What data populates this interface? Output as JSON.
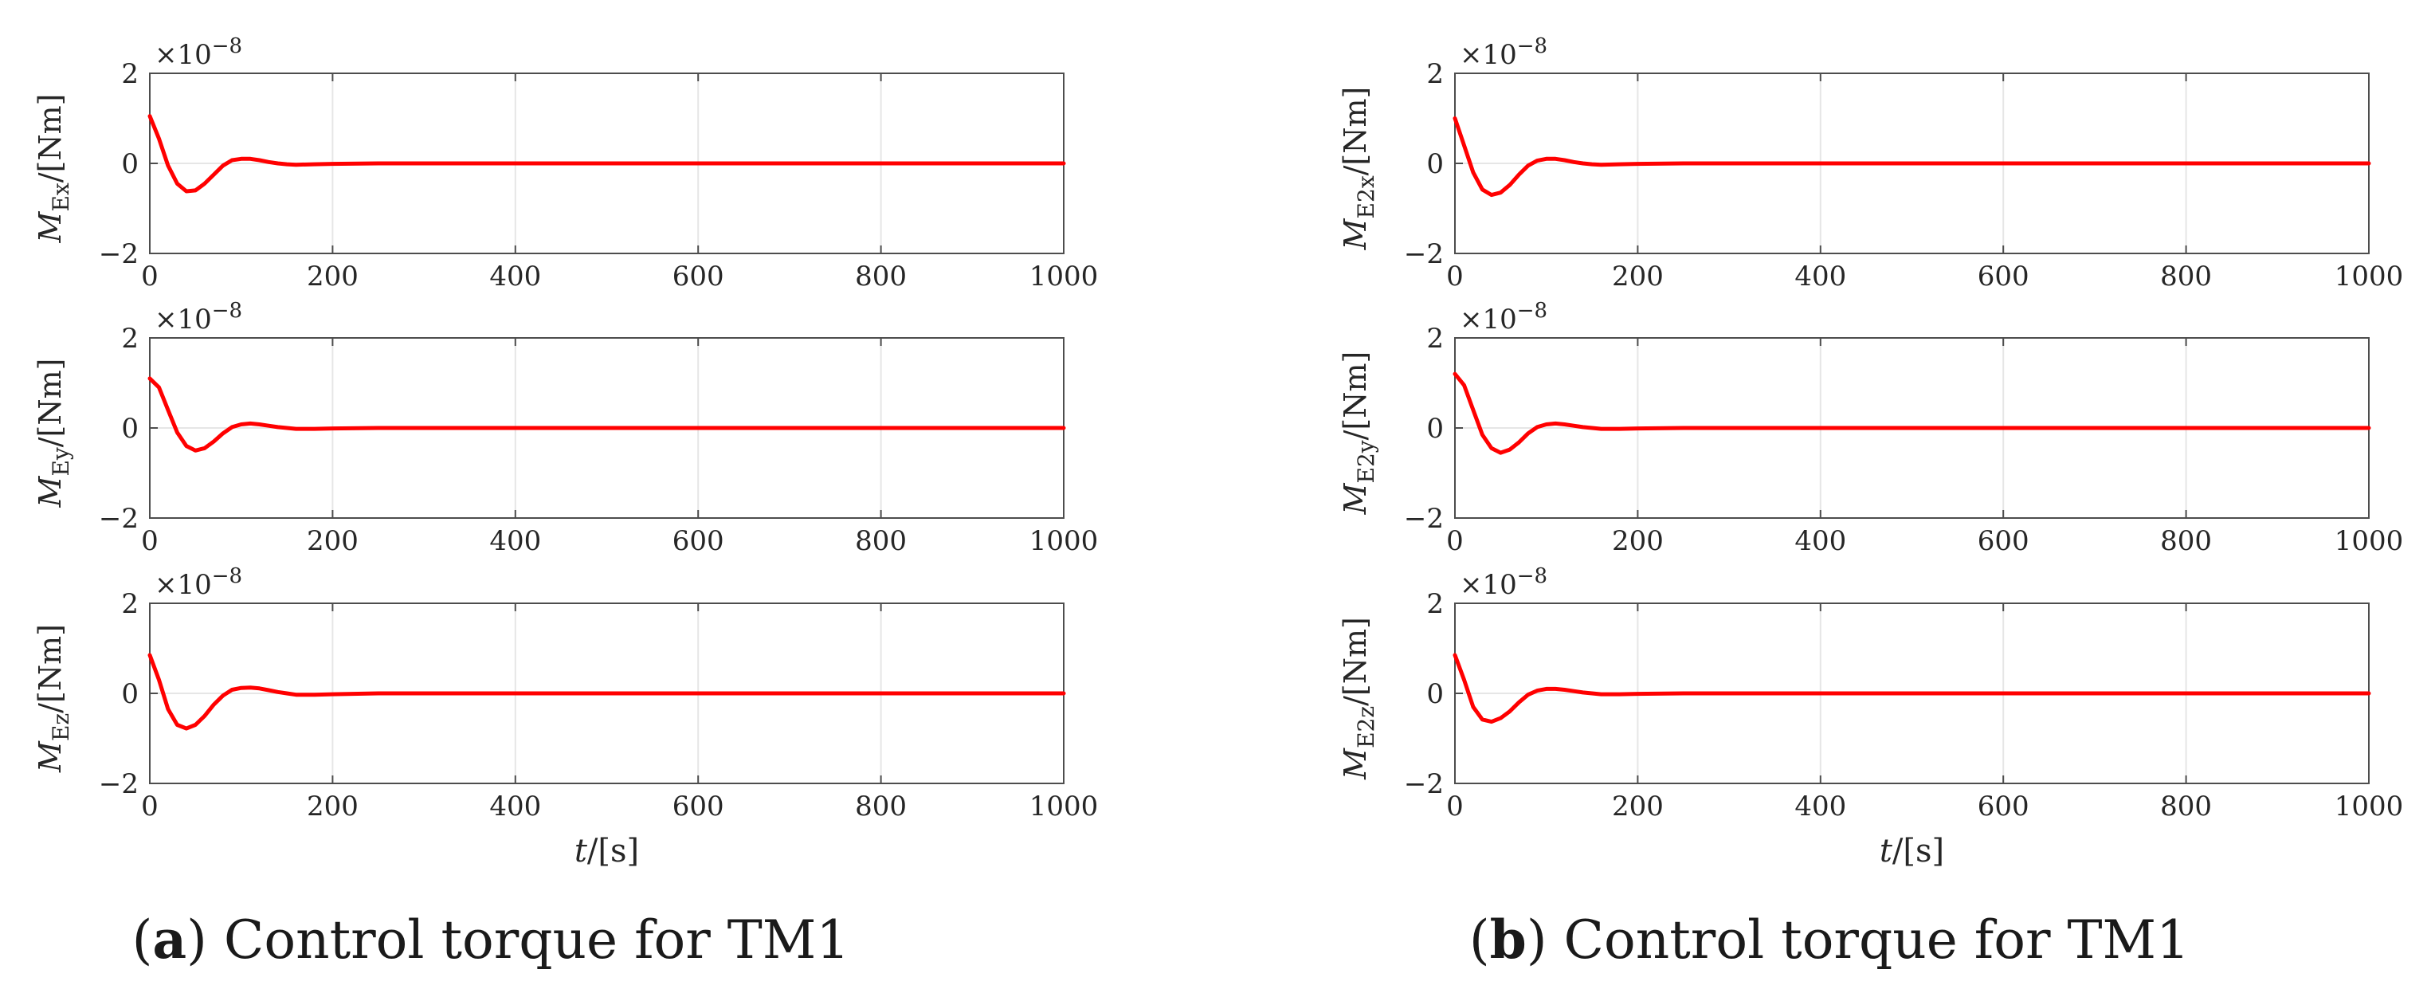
{
  "colors": {
    "series": "#ff0000",
    "grid": "#e6e6e6",
    "axis": "#4d4d4d",
    "text": "#262626"
  },
  "captions": [
    {
      "label": "a",
      "text": ") Control torque for TM1"
    },
    {
      "label": "b",
      "text": ") Control torque for TM1"
    }
  ],
  "chart_data": [
    {
      "type": "line",
      "ylabel_main": "M",
      "ylabel_sub": "Ex",
      "ylabel_unit": "/[Nm]",
      "xlabel": "",
      "exponent_prefix": "×10",
      "exponent": "−8",
      "xlim": [
        0,
        1000
      ],
      "ylim": [
        -2,
        2
      ],
      "xticks": [
        "0",
        "200",
        "400",
        "600",
        "800",
        "1000"
      ],
      "yticks": [
        "2",
        "0",
        "−2"
      ],
      "grid": true,
      "series": [
        {
          "x": [
            0,
            10,
            20,
            30,
            40,
            50,
            60,
            70,
            80,
            90,
            100,
            110,
            120,
            130,
            140,
            150,
            160,
            180,
            200,
            250,
            300,
            400,
            600,
            800,
            1000
          ],
          "y": [
            1.05,
            0.55,
            -0.05,
            -0.45,
            -0.62,
            -0.6,
            -0.45,
            -0.25,
            -0.05,
            0.07,
            0.1,
            0.1,
            0.07,
            0.03,
            0.0,
            -0.02,
            -0.03,
            -0.02,
            -0.01,
            0,
            0,
            0,
            0,
            0,
            0
          ]
        }
      ]
    },
    {
      "type": "line",
      "ylabel_main": "M",
      "ylabel_sub": "Ey",
      "ylabel_unit": "/[Nm]",
      "xlabel": "",
      "exponent_prefix": "×10",
      "exponent": "−8",
      "xlim": [
        0,
        1000
      ],
      "ylim": [
        -2,
        2
      ],
      "xticks": [
        "0",
        "200",
        "400",
        "600",
        "800",
        "1000"
      ],
      "yticks": [
        "2",
        "0",
        "−2"
      ],
      "grid": true,
      "series": [
        {
          "x": [
            0,
            10,
            20,
            30,
            40,
            50,
            60,
            70,
            80,
            90,
            100,
            110,
            120,
            130,
            140,
            150,
            160,
            180,
            200,
            250,
            300,
            400,
            600,
            800,
            1000
          ],
          "y": [
            1.1,
            0.9,
            0.4,
            -0.1,
            -0.4,
            -0.5,
            -0.45,
            -0.3,
            -0.12,
            0.02,
            0.08,
            0.1,
            0.08,
            0.05,
            0.02,
            0.0,
            -0.02,
            -0.02,
            -0.01,
            0,
            0,
            0,
            0,
            0,
            0
          ]
        }
      ]
    },
    {
      "type": "line",
      "ylabel_main": "M",
      "ylabel_sub": "Ez",
      "ylabel_unit": "/[Nm]",
      "xlabel": "t/[s]",
      "exponent_prefix": "×10",
      "exponent": "−8",
      "xlim": [
        0,
        1000
      ],
      "ylim": [
        -2,
        2
      ],
      "xticks": [
        "0",
        "200",
        "400",
        "600",
        "800",
        "1000"
      ],
      "yticks": [
        "2",
        "0",
        "−2"
      ],
      "grid": true,
      "series": [
        {
          "x": [
            0,
            10,
            20,
            30,
            40,
            50,
            60,
            70,
            80,
            90,
            100,
            110,
            120,
            130,
            140,
            150,
            160,
            180,
            200,
            250,
            300,
            400,
            600,
            800,
            1000
          ],
          "y": [
            0.85,
            0.3,
            -0.35,
            -0.7,
            -0.78,
            -0.7,
            -0.5,
            -0.25,
            -0.05,
            0.08,
            0.12,
            0.13,
            0.11,
            0.07,
            0.03,
            0.0,
            -0.03,
            -0.03,
            -0.02,
            0,
            0,
            0,
            0,
            0,
            0
          ]
        }
      ]
    },
    {
      "type": "line",
      "ylabel_main": "M",
      "ylabel_sub": "E2x",
      "ylabel_unit": "/[Nm]",
      "xlabel": "",
      "exponent_prefix": "×10",
      "exponent": "−8",
      "xlim": [
        0,
        1000
      ],
      "ylim": [
        -2,
        2
      ],
      "xticks": [
        "0",
        "200",
        "400",
        "600",
        "800",
        "1000"
      ],
      "yticks": [
        "2",
        "0",
        "−2"
      ],
      "grid": true,
      "series": [
        {
          "x": [
            0,
            10,
            20,
            30,
            40,
            50,
            60,
            70,
            80,
            90,
            100,
            110,
            120,
            130,
            140,
            150,
            160,
            180,
            200,
            250,
            300,
            400,
            600,
            800,
            1000
          ],
          "y": [
            1.0,
            0.4,
            -0.2,
            -0.58,
            -0.7,
            -0.65,
            -0.48,
            -0.25,
            -0.05,
            0.06,
            0.1,
            0.1,
            0.07,
            0.03,
            0.0,
            -0.02,
            -0.03,
            -0.02,
            -0.01,
            0,
            0,
            0,
            0,
            0,
            0
          ]
        }
      ]
    },
    {
      "type": "line",
      "ylabel_main": "M",
      "ylabel_sub": "E2y",
      "ylabel_unit": "/[Nm]",
      "xlabel": "",
      "exponent_prefix": "×10",
      "exponent": "−8",
      "xlim": [
        0,
        1000
      ],
      "ylim": [
        -2,
        2
      ],
      "xticks": [
        "0",
        "200",
        "400",
        "600",
        "800",
        "1000"
      ],
      "yticks": [
        "2",
        "0",
        "−2"
      ],
      "grid": true,
      "series": [
        {
          "x": [
            0,
            10,
            20,
            30,
            40,
            50,
            60,
            70,
            80,
            90,
            100,
            110,
            120,
            130,
            140,
            150,
            160,
            180,
            200,
            250,
            300,
            400,
            600,
            800,
            1000
          ],
          "y": [
            1.2,
            0.95,
            0.4,
            -0.15,
            -0.45,
            -0.55,
            -0.48,
            -0.32,
            -0.12,
            0.02,
            0.08,
            0.1,
            0.08,
            0.05,
            0.02,
            0.0,
            -0.02,
            -0.02,
            -0.01,
            0,
            0,
            0,
            0,
            0,
            0
          ]
        }
      ]
    },
    {
      "type": "line",
      "ylabel_main": "M",
      "ylabel_sub": "E2z",
      "ylabel_unit": "/[Nm]",
      "xlabel": "t/[s]",
      "exponent_prefix": "×10",
      "exponent": "−8",
      "xlim": [
        0,
        1000
      ],
      "ylim": [
        -2,
        2
      ],
      "xticks": [
        "0",
        "200",
        "400",
        "600",
        "800",
        "1000"
      ],
      "yticks": [
        "2",
        "0",
        "−2"
      ],
      "grid": true,
      "series": [
        {
          "x": [
            0,
            10,
            20,
            30,
            40,
            50,
            60,
            70,
            80,
            90,
            100,
            110,
            120,
            130,
            140,
            150,
            160,
            180,
            200,
            250,
            300,
            400,
            600,
            800,
            1000
          ],
          "y": [
            0.85,
            0.3,
            -0.3,
            -0.58,
            -0.63,
            -0.55,
            -0.4,
            -0.2,
            -0.03,
            0.06,
            0.1,
            0.1,
            0.08,
            0.05,
            0.02,
            0.0,
            -0.02,
            -0.02,
            -0.01,
            0,
            0,
            0,
            0,
            0,
            0
          ]
        }
      ]
    }
  ]
}
